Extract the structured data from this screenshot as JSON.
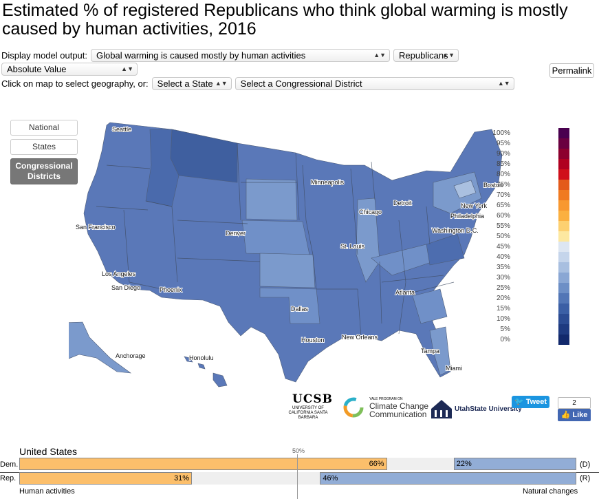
{
  "title": "Estimated % of registered Republicans who think global warming is mostly caused by human activities, 2016",
  "controls": {
    "display_label": "Display model output:",
    "output_value": "Global warming is caused mostly by human activities",
    "party_value": "Republicans",
    "measure_value": "Absolute Value",
    "click_label": "Click on map to select geography, or:",
    "state_placeholder": "Select a State",
    "district_placeholder": "Select a Congressional District",
    "permalink": "Permalink"
  },
  "geography_buttons": {
    "national": "National",
    "states": "States",
    "districts": "Congressional Districts"
  },
  "map": {
    "cities": [
      "Seattle",
      "San Francisco",
      "Los Angeles",
      "San Diego",
      "Phoenix",
      "Denver",
      "Minneapolis",
      "Chicago",
      "Detroit",
      "St. Louis",
      "Dallas",
      "Houston",
      "New Orleans",
      "Atlanta",
      "Tampa",
      "Miami",
      "Washington D.C.",
      "Philadelphia",
      "New York",
      "Boston",
      "Anchorage",
      "Honolulu"
    ],
    "colors": {
      "dark": "#3f5f9f",
      "mid": "#5a78b8",
      "light": "#7b9acc",
      "pale": "#aac0e0",
      "border": "#556070"
    }
  },
  "legend": {
    "labels": [
      "100%",
      "95%",
      "90%",
      "85%",
      "80%",
      "75%",
      "70%",
      "65%",
      "60%",
      "55%",
      "50%",
      "45%",
      "40%",
      "35%",
      "30%",
      "25%",
      "20%",
      "15%",
      "10%",
      "5%",
      "0%"
    ],
    "colors": [
      "#49004f",
      "#6a0040",
      "#8c002e",
      "#b00020",
      "#d0101a",
      "#e35a1a",
      "#f07a20",
      "#f89830",
      "#fbb040",
      "#fdd070",
      "#fde8a0",
      "#dde6f2",
      "#c5d5eb",
      "#a8bfe0",
      "#8aa7d4",
      "#6d8fc6",
      "#5276b6",
      "#3b5fa5",
      "#2b4b92",
      "#1e3a80",
      "#12296c"
    ]
  },
  "logos": {
    "ucsb": "UCSB",
    "ucsb_sub": "UNIVERSITY OF CALIFORNIA SANTA BARBARA",
    "yale_small": "YALE PROGRAM ON",
    "yale_main": "Climate Change Communication",
    "usu": "UtahState University"
  },
  "social": {
    "tweet": "Tweet",
    "like_count": "2",
    "like": "Like"
  },
  "bars": {
    "title": "United States",
    "mid_label": "50%",
    "dem_label": "Dem.",
    "rep_label": "Rep.",
    "dem_end": "(D)",
    "rep_end": "(R)",
    "dem_human": 66,
    "dem_natural": 22,
    "rep_human": 31,
    "rep_natural": 46,
    "dem_human_text": "66%",
    "dem_natural_text": "22%",
    "rep_human_text": "31%",
    "rep_natural_text": "46%",
    "left_axis": "Human activities",
    "right_axis": "Natural changes",
    "human_color": "#fcbf6b",
    "natural_color": "#92add6"
  }
}
